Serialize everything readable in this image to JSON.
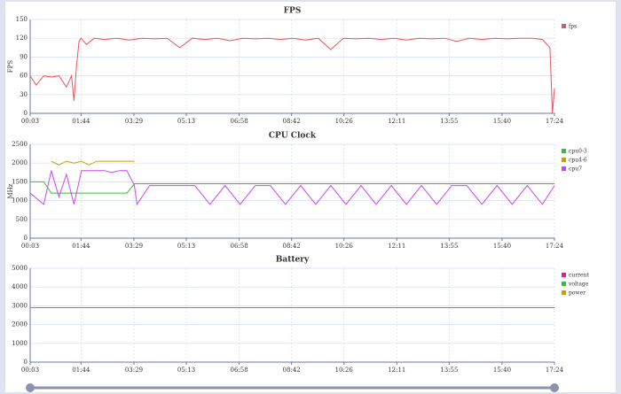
{
  "chart_data": [
    {
      "type": "line",
      "title": "FPS",
      "y_label": "FPS",
      "grid": true,
      "legend": "right",
      "x": [
        3,
        15,
        30,
        45,
        60,
        75,
        85,
        90,
        95,
        100,
        104,
        115,
        130,
        150,
        175,
        200,
        225,
        250,
        275,
        300,
        325,
        350,
        375,
        400,
        425,
        450,
        475,
        500,
        525,
        550,
        575,
        600,
        625,
        650,
        675,
        700,
        725,
        750,
        775,
        800,
        825,
        850,
        875,
        900,
        925,
        950,
        975,
        1000,
        1020,
        1035,
        1040,
        1044
      ],
      "series": [
        {
          "name": "fps",
          "color": "#e8545f",
          "values": [
            60,
            45,
            60,
            58,
            60,
            42,
            60,
            20,
            75,
            115,
            120,
            110,
            120,
            118,
            120,
            117,
            120,
            119,
            120,
            105,
            120,
            118,
            120,
            116,
            120,
            119,
            120,
            118,
            120,
            117,
            120,
            102,
            120,
            119,
            120,
            118,
            120,
            117,
            120,
            119,
            120,
            115,
            120,
            118,
            120,
            119,
            120,
            120,
            118,
            105,
            0,
            40
          ]
        }
      ],
      "xlim": [
        3,
        1044
      ],
      "xticks": [
        {
          "value": 3,
          "label": "00:03"
        },
        {
          "value": 104,
          "label": "01:44"
        },
        {
          "value": 209,
          "label": "03:29"
        },
        {
          "value": 313,
          "label": "05:13"
        },
        {
          "value": 418,
          "label": "06:58"
        },
        {
          "value": 522,
          "label": "08:42"
        },
        {
          "value": 626,
          "label": "10:26"
        },
        {
          "value": 731,
          "label": "12:11"
        },
        {
          "value": 835,
          "label": "13:55"
        },
        {
          "value": 940,
          "label": "15:40"
        },
        {
          "value": 1044,
          "label": "17:24"
        }
      ],
      "ylim": [
        0,
        150
      ],
      "yticks": [
        0,
        30,
        60,
        90,
        120,
        150
      ]
    },
    {
      "type": "line",
      "title": "CPU Clock",
      "y_label": "MHz",
      "grid": true,
      "legend": "right",
      "x": [
        3,
        30,
        45,
        60,
        75,
        90,
        105,
        120,
        135,
        150,
        165,
        180,
        195,
        210,
        215,
        240,
        270,
        300,
        330,
        360,
        390,
        420,
        450,
        480,
        510,
        540,
        570,
        600,
        630,
        660,
        690,
        720,
        750,
        780,
        810,
        840,
        870,
        900,
        930,
        960,
        990,
        1020,
        1044
      ],
      "series": [
        {
          "name": "cpu0-3",
          "color": "#3cb83c",
          "values": [
            1500,
            1500,
            1200,
            1200,
            1200,
            1200,
            1200,
            1200,
            1200,
            1200,
            1200,
            1200,
            1200,
            1450,
            1450,
            1450,
            1450,
            1450,
            1450,
            1450,
            1450,
            1450,
            1450,
            1450,
            1450,
            1450,
            1450,
            1450,
            1450,
            1450,
            1450,
            1450,
            1450,
            1450,
            1450,
            1450,
            1450,
            1450,
            1450,
            1450,
            1450,
            1450,
            1450
          ]
        },
        {
          "name": "cpu4-6",
          "color": "#c8a000",
          "values": [
            null,
            null,
            2050,
            1950,
            2050,
            2000,
            2050,
            1950,
            2050,
            2050,
            2050,
            2050,
            2050,
            2050,
            null,
            null,
            null,
            null,
            null,
            null,
            null,
            null,
            null,
            null,
            null,
            null,
            null,
            null,
            null,
            null,
            null,
            null,
            null,
            null,
            null,
            null,
            null,
            null,
            null,
            null,
            null,
            null,
            null
          ]
        },
        {
          "name": "cpu7",
          "color": "#cc44ee",
          "values": [
            1200,
            900,
            1800,
            1100,
            1700,
            900,
            1800,
            1800,
            1800,
            1800,
            1750,
            1800,
            1800,
            1400,
            900,
            1400,
            1400,
            1400,
            1400,
            900,
            1400,
            900,
            1400,
            1400,
            900,
            1400,
            900,
            1400,
            900,
            1400,
            900,
            1400,
            900,
            1400,
            900,
            1400,
            1400,
            900,
            1400,
            900,
            1400,
            900,
            1400
          ]
        }
      ],
      "xlim": [
        3,
        1044
      ],
      "xticks": [
        {
          "value": 3,
          "label": "00:03"
        },
        {
          "value": 104,
          "label": "01:44"
        },
        {
          "value": 209,
          "label": "03:29"
        },
        {
          "value": 313,
          "label": "05:13"
        },
        {
          "value": 418,
          "label": "06:58"
        },
        {
          "value": 522,
          "label": "08:42"
        },
        {
          "value": 626,
          "label": "10:26"
        },
        {
          "value": 731,
          "label": "12:11"
        },
        {
          "value": 835,
          "label": "13:55"
        },
        {
          "value": 940,
          "label": "15:40"
        },
        {
          "value": 1044,
          "label": "17:24"
        }
      ],
      "ylim": [
        0,
        2500
      ],
      "yticks": [
        0,
        500,
        1000,
        1500,
        2000,
        2500
      ]
    },
    {
      "type": "line",
      "title": "Battery",
      "grid": true,
      "legend": "right",
      "x": [
        3,
        1044
      ],
      "series": [
        {
          "name": "current",
          "color": "#cc22aa",
          "values": [
            null,
            null
          ]
        },
        {
          "name": "voltage",
          "color": "#3cb83c",
          "values": [
            2900,
            2900
          ]
        },
        {
          "name": "power",
          "color": "#c8a000",
          "values": [
            null,
            null
          ]
        }
      ],
      "xlim": [
        3,
        1044
      ],
      "xticks": [
        {
          "value": 3,
          "label": "00:03"
        },
        {
          "value": 104,
          "label": "01:44"
        },
        {
          "value": 209,
          "label": "03:29"
        },
        {
          "value": 313,
          "label": "05:13"
        },
        {
          "value": 418,
          "label": "06:58"
        },
        {
          "value": 522,
          "label": "08:42"
        },
        {
          "value": 626,
          "label": "10:26"
        },
        {
          "value": 731,
          "label": "12:11"
        },
        {
          "value": 835,
          "label": "13:55"
        },
        {
          "value": 940,
          "label": "15:40"
        },
        {
          "value": 1044,
          "label": "17:24"
        }
      ],
      "ylim": [
        0,
        5000
      ],
      "yticks": [
        0,
        1000,
        2000,
        3000,
        4000,
        5000
      ]
    }
  ]
}
